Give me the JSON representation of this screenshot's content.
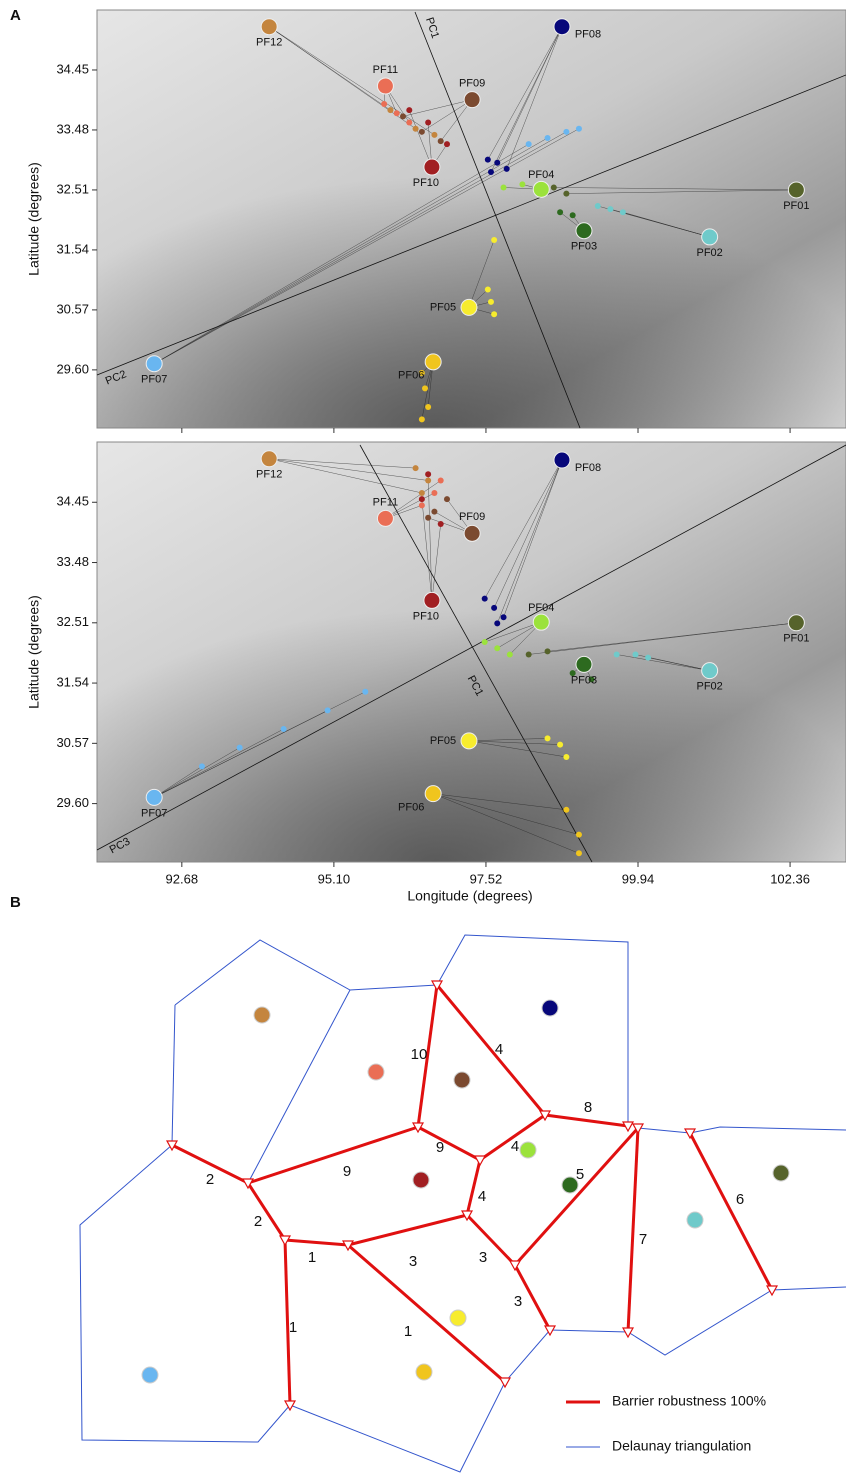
{
  "chart_data": [
    {
      "type": "scatter",
      "panel_label": "A",
      "y_label": "Latitude (degrees)",
      "pc_labels": [
        "PC1",
        "PC2"
      ],
      "xlim": [
        91.33,
        103.25
      ],
      "ylim": [
        28.66,
        35.42
      ],
      "xticks": [
        92.68,
        95.1,
        97.52,
        99.94,
        102.36
      ],
      "yticks": [
        34.45,
        33.48,
        32.51,
        31.54,
        30.57,
        {
          "value": 29.6,
          "label": "29.60"
        }
      ],
      "series": [
        {
          "name": "PF01",
          "color": "#56632b",
          "x": 102.46,
          "y": 32.51,
          "samples": {
            "x": [
              98.6,
              98.8
            ],
            "y": [
              32.55,
              32.45
            ]
          }
        },
        {
          "name": "PF02",
          "color": "#6fcaca",
          "x": 101.08,
          "y": 31.75,
          "samples": {
            "x": [
              99.3,
              99.5,
              99.7
            ],
            "y": [
              32.25,
              32.2,
              32.15
            ]
          }
        },
        {
          "name": "PF03",
          "color": "#2d6a1f",
          "x": 99.08,
          "y": 31.85,
          "samples": {
            "x": [
              98.7,
              98.9
            ],
            "y": [
              32.15,
              32.1
            ]
          }
        },
        {
          "name": "PF04",
          "color": "#9be23c",
          "x": 98.4,
          "y": 32.52,
          "samples": {
            "x": [
              97.8,
              98.1,
              98.4
            ],
            "y": [
              32.55,
              32.6,
              32.5
            ]
          }
        },
        {
          "name": "PF05",
          "color": "#f7ec2e",
          "x": 97.25,
          "y": 30.61,
          "samples": {
            "x": [
              97.65,
              97.55,
              97.6,
              97.65
            ],
            "y": [
              31.7,
              30.9,
              30.7,
              30.5
            ]
          }
        },
        {
          "name": "PF06",
          "color": "#f0c51e",
          "x": 96.68,
          "y": 29.73,
          "samples": {
            "x": [
              96.5,
              96.55,
              96.6,
              96.5
            ],
            "y": [
              29.55,
              29.3,
              29.0,
              28.8
            ]
          }
        },
        {
          "name": "PF07",
          "color": "#69b6f0",
          "x": 92.24,
          "y": 29.7,
          "samples": {
            "x": [
              98.2,
              98.5,
              98.8,
              99.0
            ],
            "y": [
              33.25,
              33.35,
              33.45,
              33.5
            ]
          }
        },
        {
          "name": "PF08",
          "color": "#07077a",
          "x": 98.73,
          "y": 35.15,
          "samples": {
            "x": [
              97.55,
              97.7,
              97.85,
              97.6
            ],
            "y": [
              33.0,
              32.95,
              32.85,
              32.8
            ]
          }
        },
        {
          "name": "PF09",
          "color": "#7b4a30",
          "x": 97.3,
          "y": 33.97,
          "samples": {
            "x": [
              96.2,
              96.5,
              96.8
            ],
            "y": [
              33.7,
              33.45,
              33.3
            ]
          }
        },
        {
          "name": "PF10",
          "color": "#a11f22",
          "x": 96.66,
          "y": 32.88,
          "samples": {
            "x": [
              96.3,
              96.6,
              96.9
            ],
            "y": [
              33.8,
              33.6,
              33.25
            ]
          }
        },
        {
          "name": "PF11",
          "color": "#ea6e55",
          "x": 95.92,
          "y": 34.19,
          "samples": {
            "x": [
              95.9,
              96.1,
              96.3
            ],
            "y": [
              33.9,
              33.75,
              33.6
            ]
          }
        },
        {
          "name": "PF12",
          "color": "#c4853e",
          "x": 94.07,
          "y": 35.15,
          "samples": {
            "x": [
              96.0,
              96.4,
              96.7
            ],
            "y": [
              33.8,
              33.5,
              33.4
            ]
          }
        }
      ]
    },
    {
      "type": "scatter",
      "y_label": "Latitude (degrees)",
      "x_label": "Longitude (degrees)",
      "pc_labels": [
        "PC1",
        "PC3"
      ],
      "xlim": [
        91.33,
        103.25
      ],
      "ylim": [
        28.66,
        35.42
      ],
      "xticks": [
        92.68,
        {
          "value": 95.1,
          "label": "95.10"
        },
        97.52,
        99.94,
        102.36
      ],
      "yticks": [
        34.45,
        33.48,
        32.51,
        31.54,
        30.57,
        {
          "value": 29.6,
          "label": "29.60"
        }
      ],
      "series": [
        {
          "name": "PF01",
          "color": "#56632b",
          "x": 102.46,
          "y": 32.51,
          "samples": {
            "x": [
              98.2,
              98.5
            ],
            "y": [
              32.0,
              32.05
            ]
          }
        },
        {
          "name": "PF02",
          "color": "#6fcaca",
          "x": 101.08,
          "y": 31.74,
          "samples": {
            "x": [
              99.6,
              99.9,
              100.1
            ],
            "y": [
              32.0,
              32.0,
              31.95
            ]
          }
        },
        {
          "name": "PF03",
          "color": "#2d6a1f",
          "x": 99.08,
          "y": 31.84,
          "samples": {
            "x": [
              98.9,
              99.2
            ],
            "y": [
              31.7,
              31.6
            ]
          }
        },
        {
          "name": "PF04",
          "color": "#9be23c",
          "x": 98.4,
          "y": 32.52,
          "samples": {
            "x": [
              97.5,
              97.7,
              97.9
            ],
            "y": [
              32.2,
              32.1,
              32.0
            ]
          }
        },
        {
          "name": "PF05",
          "color": "#f7ec2e",
          "x": 97.25,
          "y": 30.61,
          "samples": {
            "x": [
              98.5,
              98.7,
              98.8
            ],
            "y": [
              30.65,
              30.55,
              30.35
            ]
          }
        },
        {
          "name": "PF06",
          "color": "#f0c51e",
          "x": 96.68,
          "y": 29.76,
          "samples": {
            "x": [
              98.8,
              99.0,
              99.0
            ],
            "y": [
              29.5,
              29.1,
              28.8
            ]
          }
        },
        {
          "name": "PF07",
          "color": "#69b6f0",
          "x": 92.24,
          "y": 29.7,
          "samples": {
            "x": [
              93.0,
              93.6,
              94.3,
              95.0,
              95.6
            ],
            "y": [
              30.2,
              30.5,
              30.8,
              31.1,
              31.4
            ]
          }
        },
        {
          "name": "PF08",
          "color": "#07077a",
          "x": 98.73,
          "y": 35.13,
          "samples": {
            "x": [
              97.5,
              97.65,
              97.8,
              97.7
            ],
            "y": [
              32.9,
              32.75,
              32.6,
              32.5
            ]
          }
        },
        {
          "name": "PF09",
          "color": "#7b4a30",
          "x": 97.3,
          "y": 33.95,
          "samples": {
            "x": [
              96.7,
              96.9,
              96.6
            ],
            "y": [
              34.3,
              34.5,
              34.2
            ]
          }
        },
        {
          "name": "PF10",
          "color": "#a11f22",
          "x": 96.66,
          "y": 32.87,
          "samples": {
            "x": [
              96.5,
              96.8,
              96.6
            ],
            "y": [
              34.5,
              34.1,
              34.9
            ]
          }
        },
        {
          "name": "PF11",
          "color": "#ea6e55",
          "x": 95.92,
          "y": 34.19,
          "samples": {
            "x": [
              96.5,
              96.7,
              96.8
            ],
            "y": [
              34.4,
              34.6,
              34.8
            ]
          }
        },
        {
          "name": "PF12",
          "color": "#c4853e",
          "x": 94.07,
          "y": 35.15,
          "samples": {
            "x": [
              96.4,
              96.6,
              96.5
            ],
            "y": [
              35.0,
              34.8,
              34.6
            ]
          }
        }
      ]
    }
  ],
  "diagram": {
    "panel_label": "B",
    "barriers": [
      2,
      2,
      9,
      10,
      4,
      8,
      9,
      4,
      4,
      3,
      3,
      1,
      1,
      1,
      3,
      5,
      7,
      6
    ],
    "legend": [
      "Barrier robustness 100%",
      "Delaunay triangulation"
    ]
  }
}
